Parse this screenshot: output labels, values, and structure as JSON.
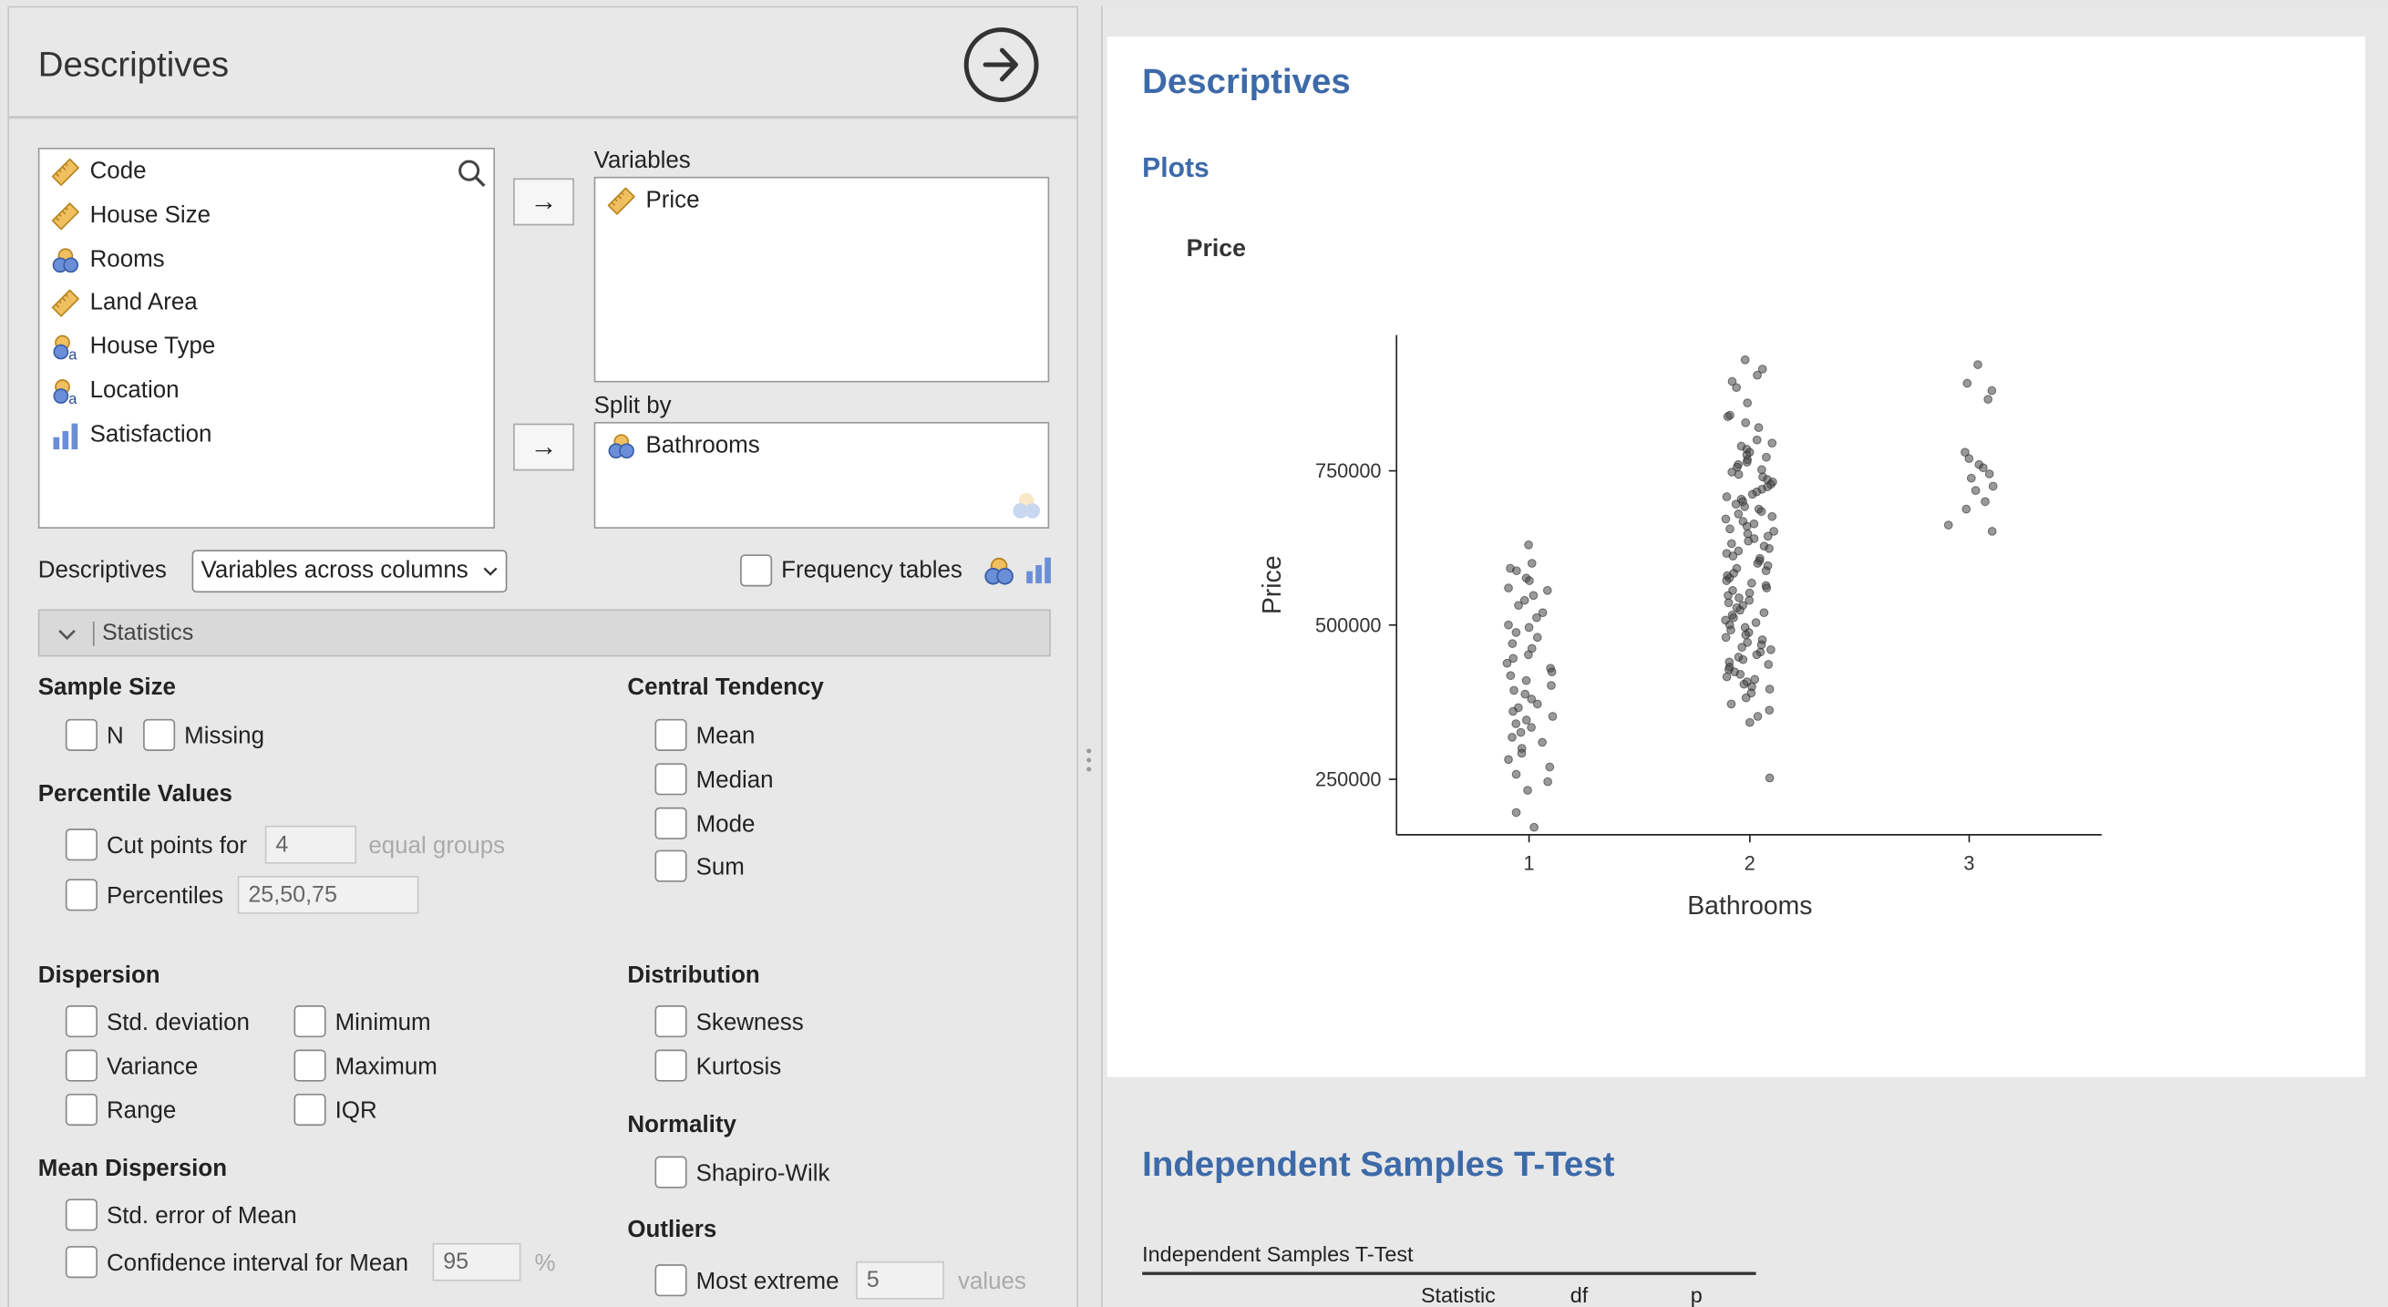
{
  "panel": {
    "title": "Descriptives",
    "source_vars": [
      {
        "name": "Code",
        "icon": "ruler-icon"
      },
      {
        "name": "House Size",
        "icon": "ruler-icon"
      },
      {
        "name": "Rooms",
        "icon": "nominal-circles-icon"
      },
      {
        "name": "Land Area",
        "icon": "ruler-icon"
      },
      {
        "name": "House Type",
        "icon": "nominal-text-icon"
      },
      {
        "name": "Location",
        "icon": "nominal-text-icon"
      },
      {
        "name": "Satisfaction",
        "icon": "ordinal-bars-icon"
      }
    ],
    "variables_label": "Variables",
    "variables": [
      "Price"
    ],
    "split_label": "Split by",
    "split": [
      "Bathrooms"
    ],
    "descriptives_label": "Descriptives",
    "descriptives_select": "Variables across columns",
    "frequency_tables": "Frequency tables",
    "statistics_section": "Statistics",
    "sample_size": {
      "heading": "Sample Size",
      "n": "N",
      "missing": "Missing"
    },
    "percentile": {
      "heading": "Percentile Values",
      "cut_points": "Cut points for",
      "cut_value": "4",
      "equal_groups": "equal groups",
      "percentiles": "Percentiles",
      "percentiles_value": "25,50,75"
    },
    "dispersion": {
      "heading": "Dispersion",
      "std": "Std. deviation",
      "min": "Minimum",
      "variance": "Variance",
      "max": "Maximum",
      "range": "Range",
      "iqr": "IQR"
    },
    "mean_dispersion": {
      "heading": "Mean Dispersion",
      "se": "Std. error of Mean",
      "ci": "Confidence interval for Mean",
      "ci_value": "95",
      "pct": "%"
    },
    "central": {
      "heading": "Central Tendency",
      "mean": "Mean",
      "median": "Median",
      "mode": "Mode",
      "sum": "Sum"
    },
    "distribution": {
      "heading": "Distribution",
      "skew": "Skewness",
      "kurt": "Kurtosis"
    },
    "normality": {
      "heading": "Normality",
      "sw": "Shapiro-Wilk"
    },
    "outliers": {
      "heading": "Outliers",
      "most_extreme": "Most extreme",
      "value": "5",
      "values": "values"
    }
  },
  "results": {
    "heading": "Descriptives",
    "plots_heading": "Plots",
    "plot_title": "Price",
    "ttest_heading": "Independent Samples T-Test",
    "ttest_table_title": "Independent Samples T-Test",
    "ttest_cols": [
      "Statistic",
      "df",
      "p"
    ]
  },
  "colors": {
    "accent": "#3d6aa8",
    "point": "#555555"
  },
  "chart_data": {
    "type": "scatter",
    "title": "",
    "xlabel": "Bathrooms",
    "ylabel": "Price",
    "categories": [
      "1",
      "2",
      "3"
    ],
    "y_ticks": [
      250000,
      500000,
      750000
    ],
    "y_tick_labels": [
      "250000",
      "500000",
      "750000"
    ],
    "ylim": [
      160000,
      970000
    ],
    "grid": false,
    "series": [
      {
        "x": "1",
        "values": [
          630000,
          600000,
          592000,
          588000,
          576000,
          572000,
          560000,
          556000,
          548000,
          540000,
          532000,
          520000,
          512000,
          500000,
          496000,
          488000,
          480000,
          470000,
          462000,
          452000,
          446000,
          438000,
          430000,
          424000,
          418000,
          410000,
          402000,
          394000,
          388000,
          380000,
          372000,
          366000,
          360000,
          352000,
          346000,
          340000,
          334000,
          326000,
          318000,
          310000,
          300000,
          292000,
          282000,
          270000,
          258000,
          246000,
          232000,
          196000,
          172000
        ]
      },
      {
        "x": "2",
        "values": [
          930000,
          915000,
          905000,
          895000,
          885000,
          860000,
          840000,
          838000,
          828000,
          820000,
          800000,
          795000,
          790000,
          785000,
          780000,
          776000,
          772000,
          768000,
          764000,
          760000,
          756000,
          752000,
          748000,
          744000,
          740000,
          736000,
          732000,
          728000,
          724000,
          720000,
          716000,
          712000,
          708000,
          704000,
          700000,
          696000,
          692000,
          688000,
          684000,
          680000,
          676000,
          672000,
          668000,
          664000,
          660000,
          656000,
          652000,
          648000,
          644000,
          640000,
          636000,
          632000,
          628000,
          624000,
          620000,
          616000,
          612000,
          608000,
          604000,
          600000,
          596000,
          592000,
          588000,
          584000,
          580000,
          576000,
          572000,
          568000,
          564000,
          560000,
          556000,
          552000,
          548000,
          544000,
          540000,
          536000,
          532000,
          528000,
          524000,
          520000,
          516000,
          512000,
          508000,
          504000,
          500000,
          496000,
          492000,
          488000,
          484000,
          480000,
          476000,
          472000,
          468000,
          464000,
          460000,
          456000,
          452000,
          448000,
          444000,
          440000,
          436000,
          432000,
          428000,
          424000,
          420000,
          416000,
          412000,
          408000,
          404000,
          400000,
          396000,
          390000,
          382000,
          372000,
          362000,
          352000,
          342000,
          252000
        ]
      },
      {
        "x": "3",
        "values": [
          922000,
          892000,
          880000,
          866000,
          780000,
          770000,
          760000,
          755000,
          745000,
          738000,
          725000,
          718000,
          700000,
          688000,
          662000,
          652000
        ]
      }
    ]
  }
}
